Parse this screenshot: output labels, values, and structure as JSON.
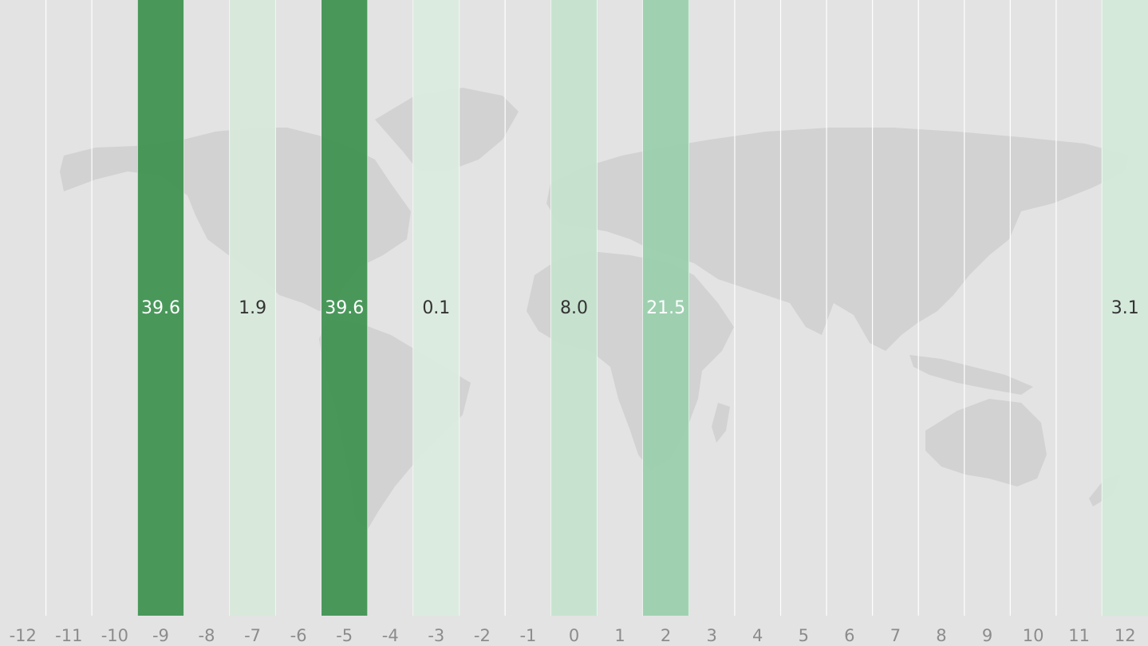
{
  "chart_data": {
    "type": "bar",
    "x_axis": {
      "ticks": [
        "-12",
        "-11",
        "-10",
        "-9",
        "-8",
        "-7",
        "-6",
        "-5",
        "-4",
        "-3",
        "-2",
        "-1",
        "0",
        "1",
        "2",
        "3",
        "4",
        "5",
        "6",
        "7",
        "8",
        "9",
        "10",
        "11",
        "12"
      ],
      "range": [
        -12,
        12
      ]
    },
    "points": [
      {
        "x": -9,
        "value": 39.6,
        "label": "39.6"
      },
      {
        "x": -7,
        "value": 1.9,
        "label": "1.9"
      },
      {
        "x": -5,
        "value": 39.6,
        "label": "39.6"
      },
      {
        "x": -3,
        "value": 0.1,
        "label": "0.1"
      },
      {
        "x": 0,
        "value": 8.0,
        "label": "8.0"
      },
      {
        "x": 2,
        "value": 21.5,
        "label": "21.5"
      },
      {
        "x": 12,
        "value": 3.1,
        "label": "3.1"
      }
    ],
    "color_scale": {
      "min": 0,
      "max": 39.6,
      "low_color": "#dcecdf",
      "mid_color": "#a3d6b6",
      "high_color": "#3d9250"
    },
    "background": "world-map",
    "grid": true,
    "legend": "none"
  },
  "colors": {
    "background": "#e3e3e3",
    "map": "#d2d2d2",
    "gridline": "#ffffff",
    "tick_text": "#8c8c8c"
  }
}
